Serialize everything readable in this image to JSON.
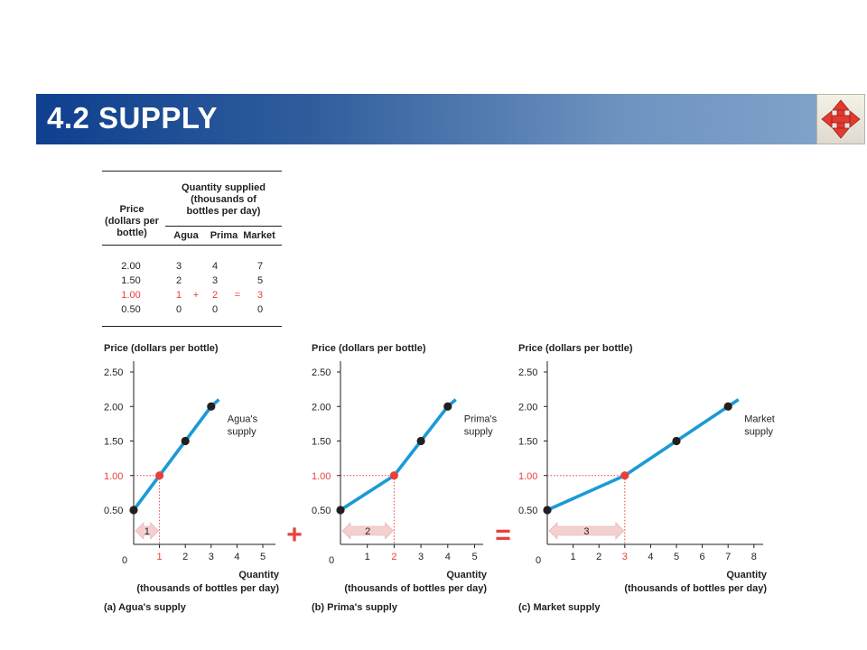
{
  "header": {
    "title": "4.2  SUPPLY"
  },
  "nav": {
    "icon": "four-way-arrows-icon"
  },
  "table": {
    "price_heading": "Price\n(dollars per\nbottle)",
    "qty_heading": "Quantity supplied\n(thousands of\nbottles per day)",
    "columns": [
      "Agua",
      "Prima",
      "Market"
    ],
    "rows": [
      {
        "price": "2.00",
        "agua": "3",
        "prima": "4",
        "market": "7",
        "highlight": false
      },
      {
        "price": "1.50",
        "agua": "2",
        "prima": "3",
        "market": "5",
        "highlight": false
      },
      {
        "price": "1.00",
        "agua": "1",
        "prima": "2",
        "market": "3",
        "highlight": true
      },
      {
        "price": "0.50",
        "agua": "0",
        "prima": "0",
        "market": "0",
        "highlight": false
      }
    ],
    "plus_sign": "+",
    "equals_sign": "="
  },
  "operators": {
    "plus": "+",
    "equals": "="
  },
  "colors": {
    "line": "#1b9ad6",
    "point": "#231f20",
    "highlight": "#e8413a",
    "arrow_fill": "#f4cfcf"
  },
  "chart_data": [
    {
      "type": "line",
      "caption": "(a) Agua's supply",
      "ylabel": "Price (dollars per bottle)",
      "xlabel": [
        "Quantity",
        "(thousands of  bottles per day)"
      ],
      "yticks": [
        "0.50",
        "1.00",
        "1.50",
        "2.00",
        "2.50"
      ],
      "ytick_values": [
        0.5,
        1.0,
        1.5,
        2.0,
        2.5
      ],
      "xticks": [
        "1",
        "2",
        "3",
        "4",
        "5"
      ],
      "xtick_values": [
        1,
        2,
        3,
        4,
        5
      ],
      "origin_label": "0",
      "xlim": [
        0,
        5.5
      ],
      "ylim": [
        0.25,
        2.75
      ],
      "series": [
        {
          "name": "Agua's supply",
          "x": [
            0,
            1,
            2,
            3
          ],
          "y": [
            0.5,
            1.0,
            1.5,
            2.0
          ]
        }
      ],
      "line_extends_to": [
        3.3,
        2.1
      ],
      "highlight": {
        "x": 1,
        "y": 1.0,
        "y_label": "1.00",
        "x_label": "1"
      },
      "series_label": [
        "Agua's",
        "supply"
      ],
      "arrow_label": "1"
    },
    {
      "type": "line",
      "caption": "(b) Prima's supply",
      "ylabel": "Price (dollars per bottle)",
      "xlabel": [
        "Quantity",
        "(thousands of  bottles per day)"
      ],
      "yticks": [
        "0.50",
        "1.00",
        "1.50",
        "2.00",
        "2.50"
      ],
      "ytick_values": [
        0.5,
        1.0,
        1.5,
        2.0,
        2.5
      ],
      "xticks": [
        "1",
        "2",
        "3",
        "4",
        "5"
      ],
      "xtick_values": [
        1,
        2,
        3,
        4,
        5
      ],
      "origin_label": "0",
      "xlim": [
        0,
        5.5
      ],
      "ylim": [
        0.25,
        2.75
      ],
      "series": [
        {
          "name": "Prima's supply",
          "x": [
            0,
            2,
            3,
            4
          ],
          "y": [
            0.5,
            1.0,
            1.5,
            2.0
          ]
        }
      ],
      "line_extends_to": [
        4.3,
        2.1
      ],
      "highlight": {
        "x": 2,
        "y": 1.0,
        "y_label": "1.00",
        "x_label": "2"
      },
      "series_label": [
        "Prima's",
        "supply"
      ],
      "arrow_label": "2"
    },
    {
      "type": "line",
      "caption": "(c) Market supply",
      "ylabel": "Price (dollars per bottle)",
      "xlabel": [
        "Quantity",
        "(thousands of  bottles per day)"
      ],
      "yticks": [
        "0.50",
        "1.00",
        "1.50",
        "2.00",
        "2.50"
      ],
      "ytick_values": [
        0.5,
        1.0,
        1.5,
        2.0,
        2.5
      ],
      "xticks": [
        "1",
        "2",
        "3",
        "4",
        "5",
        "6",
        "7",
        "8"
      ],
      "xtick_values": [
        1,
        2,
        3,
        4,
        5,
        6,
        7,
        8
      ],
      "origin_label": "0",
      "xlim": [
        0,
        8.5
      ],
      "ylim": [
        0.25,
        2.75
      ],
      "series": [
        {
          "name": "Market supply",
          "x": [
            0,
            3,
            5,
            7
          ],
          "y": [
            0.5,
            1.0,
            1.5,
            2.0
          ]
        }
      ],
      "line_extends_to": [
        7.4,
        2.1
      ],
      "highlight": {
        "x": 3,
        "y": 1.0,
        "y_label": "1.00",
        "x_label": "3"
      },
      "series_label": [
        "Market",
        "supply"
      ],
      "arrow_label": "3"
    }
  ]
}
